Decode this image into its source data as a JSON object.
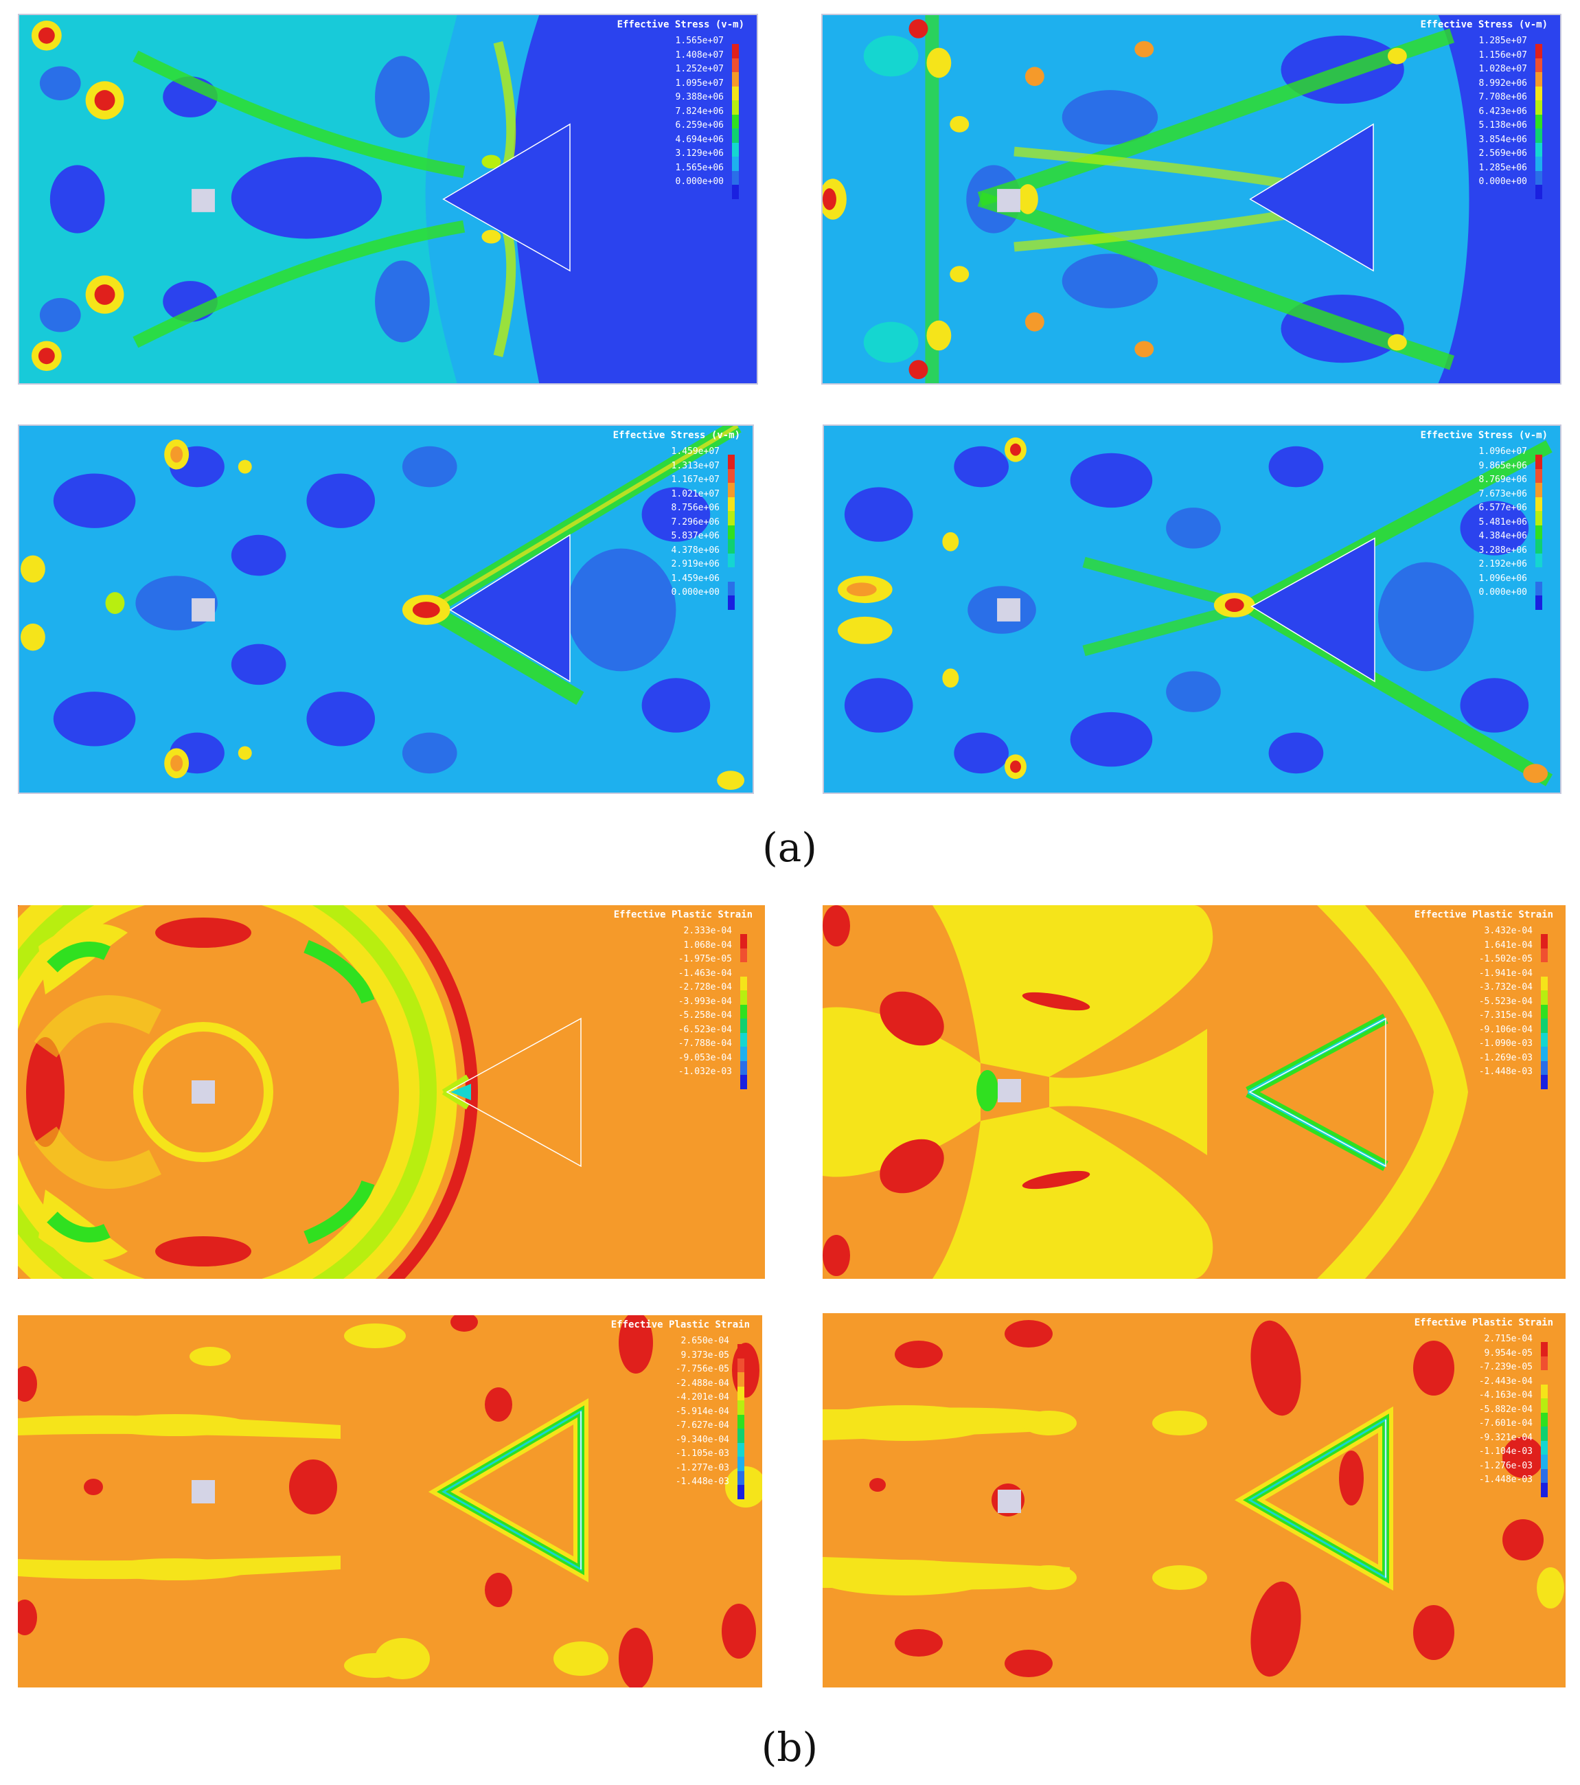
{
  "figure": {
    "captions": {
      "a": "(a)",
      "b": "(b)"
    }
  },
  "legend_colors": [
    "#e0201c",
    "#f05030",
    "#f59a2a",
    "#f5e41a",
    "#b8ee10",
    "#30e020",
    "#10d070",
    "#15d6d0",
    "#1eb0ee",
    "#2a6fe8",
    "#1a20e0"
  ],
  "panels": [
    {
      "id": "a1",
      "legend_title": "Effective Stress (v-m)",
      "values": [
        "1.565e+07",
        "1.408e+07",
        "1.252e+07",
        "1.095e+07",
        "9.388e+06",
        "7.824e+06",
        "6.259e+06",
        "4.694e+06",
        "3.129e+06",
        "1.565e+06",
        "0.000e+00"
      ],
      "theme": "stress"
    },
    {
      "id": "a2",
      "legend_title": "Effective Stress (v-m)",
      "values": [
        "1.285e+07",
        "1.156e+07",
        "1.028e+07",
        "8.992e+06",
        "7.708e+06",
        "6.423e+06",
        "5.138e+06",
        "3.854e+06",
        "2.569e+06",
        "1.285e+06",
        "0.000e+00"
      ],
      "theme": "stress"
    },
    {
      "id": "a3",
      "legend_title": "Effective Stress (v-m)",
      "values": [
        "1.459e+07",
        "1.313e+07",
        "1.167e+07",
        "1.021e+07",
        "8.756e+06",
        "7.296e+06",
        "5.837e+06",
        "4.378e+06",
        "2.919e+06",
        "1.459e+06",
        "0.000e+00"
      ],
      "theme": "stress"
    },
    {
      "id": "a4",
      "legend_title": "Effective Stress (v-m)",
      "values": [
        "1.096e+07",
        "9.865e+06",
        "8.769e+06",
        "7.673e+06",
        "6.577e+06",
        "5.481e+06",
        "4.384e+06",
        "3.288e+06",
        "2.192e+06",
        "1.096e+06",
        "0.000e+00"
      ],
      "theme": "stress"
    },
    {
      "id": "b1",
      "legend_title": "Effective Plastic Strain",
      "values": [
        "2.333e-04",
        "1.068e-04",
        "-1.975e-05",
        "-1.463e-04",
        "-2.728e-04",
        "-3.993e-04",
        "-5.258e-04",
        "-6.523e-04",
        "-7.788e-04",
        "-9.053e-04",
        "-1.032e-03"
      ],
      "theme": "strain"
    },
    {
      "id": "b2",
      "legend_title": "Effective Plastic Strain",
      "values": [
        "3.432e-04",
        "1.641e-04",
        "-1.502e-05",
        "-1.941e-04",
        "-3.732e-04",
        "-5.523e-04",
        "-7.315e-04",
        "-9.106e-04",
        "-1.090e-03",
        "-1.269e-03",
        "-1.448e-03"
      ],
      "theme": "strain"
    },
    {
      "id": "b3",
      "legend_title": "Effective Plastic Strain",
      "values": [
        "2.650e-04",
        "9.373e-05",
        "-7.756e-05",
        "-2.488e-04",
        "-4.201e-04",
        "-5.914e-04",
        "-7.627e-04",
        "-9.340e-04",
        "-1.105e-03",
        "-1.277e-03",
        "-1.448e-03"
      ],
      "theme": "strain"
    },
    {
      "id": "b4",
      "legend_title": "Effective Plastic Strain",
      "values": [
        "2.715e-04",
        "9.954e-05",
        "-7.239e-05",
        "-2.443e-04",
        "-4.163e-04",
        "-5.882e-04",
        "-7.601e-04",
        "-9.321e-04",
        "-1.104e-03",
        "-1.276e-03",
        "-1.448e-03"
      ],
      "theme": "strain"
    }
  ]
}
